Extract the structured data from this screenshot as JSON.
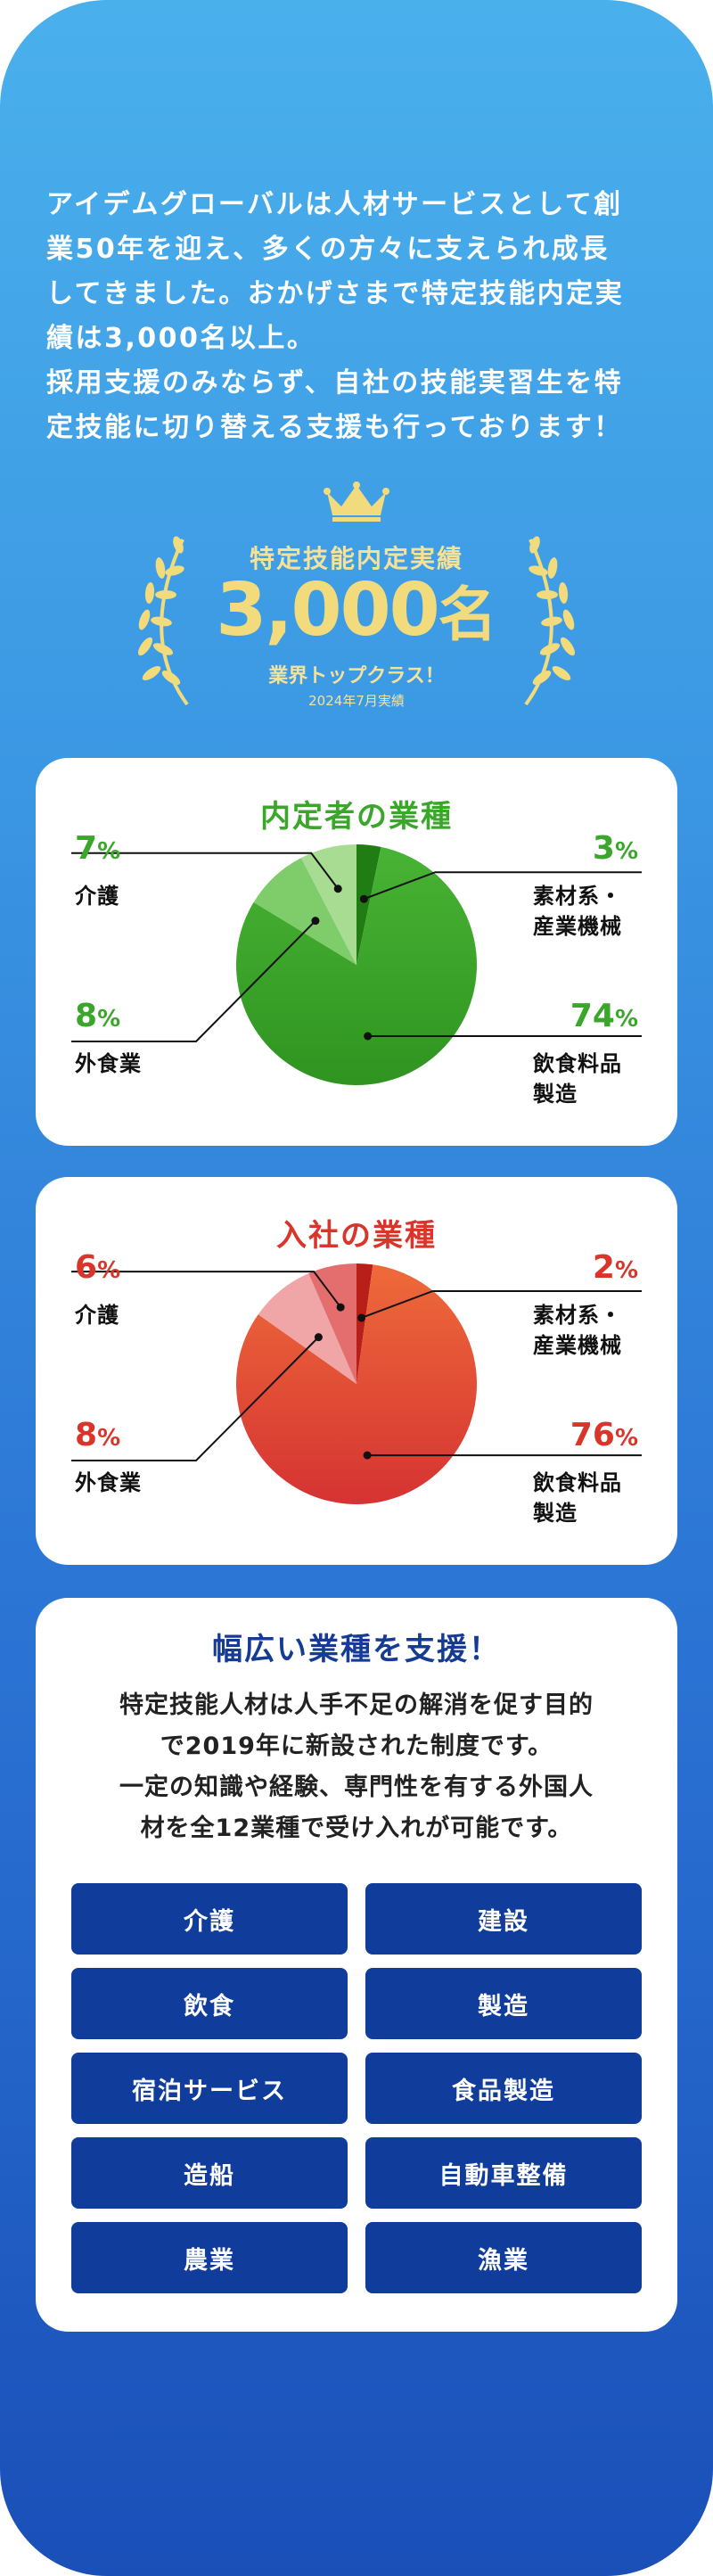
{
  "intro": {
    "lines": [
      "アイデムグローバルは人材サービスとして創",
      "業50年を迎え、多くの方々に支えられ成長",
      "してきました。おかげさまで特定技能内定実",
      "績は3,000名以上。",
      "採用支援のみならず、自社の技能実習生を特",
      "定技能に切り替える支援も行っております！"
    ]
  },
  "badge": {
    "title": "特定技能内定実績",
    "number": "3,000",
    "unit": "名",
    "sub": "業界トップクラス！",
    "note": "2024年7月実績",
    "icon": "crown-icon",
    "color": "#f2db7c"
  },
  "naitei": {
    "title": "内定者の業種",
    "color": "#3aa62a",
    "items": [
      {
        "label": "介護",
        "pct": "7",
        "sign": "%"
      },
      {
        "label": "素材系・産業機械",
        "label_lines": [
          "素材系・",
          "産業機械"
        ],
        "pct": "3",
        "sign": "%"
      },
      {
        "label": "外食業",
        "pct": "8",
        "sign": "%"
      },
      {
        "label": "飲食料品製造",
        "label_lines": [
          "飲食料品",
          "製造"
        ],
        "pct": "74",
        "sign": "%"
      }
    ]
  },
  "nyusha": {
    "title": "入社の業種",
    "color": "#d9352b",
    "items": [
      {
        "label": "介護",
        "pct": "6",
        "sign": "%"
      },
      {
        "label": "素材系・産業機械",
        "label_lines": [
          "素材系・",
          "産業機械"
        ],
        "pct": "2",
        "sign": "%"
      },
      {
        "label": "外食業",
        "pct": "8",
        "sign": "%"
      },
      {
        "label": "飲食料品製造",
        "label_lines": [
          "飲食料品",
          "製造"
        ],
        "pct": "76",
        "sign": "%"
      }
    ]
  },
  "support": {
    "title": "幅広い業種を支援！",
    "lines": [
      "特定技能人材は人手不足の解消を促す目的",
      "で2019年に新設された制度です。",
      "一定の知識や経験、専門性を有する外国人",
      "材を全12業種で受け入れが可能です。"
    ],
    "industries": [
      "介護",
      "建設",
      "飲食",
      "製造",
      "宿泊サービス",
      "食品製造",
      "造船",
      "自動車整備",
      "農業",
      "漁業"
    ],
    "button_color": "#103c9c"
  },
  "chart_data": [
    {
      "type": "pie",
      "title": "内定者の業種",
      "categories": [
        "飲食料品製造",
        "外食業",
        "介護",
        "素材系・産業機械"
      ],
      "values": [
        74,
        8,
        7,
        3
      ],
      "unit": "%"
    },
    {
      "type": "pie",
      "title": "入社の業種",
      "categories": [
        "飲食料品製造",
        "外食業",
        "介護",
        "素材系・産業機械"
      ],
      "values": [
        76,
        8,
        6,
        2
      ],
      "unit": "%"
    }
  ]
}
